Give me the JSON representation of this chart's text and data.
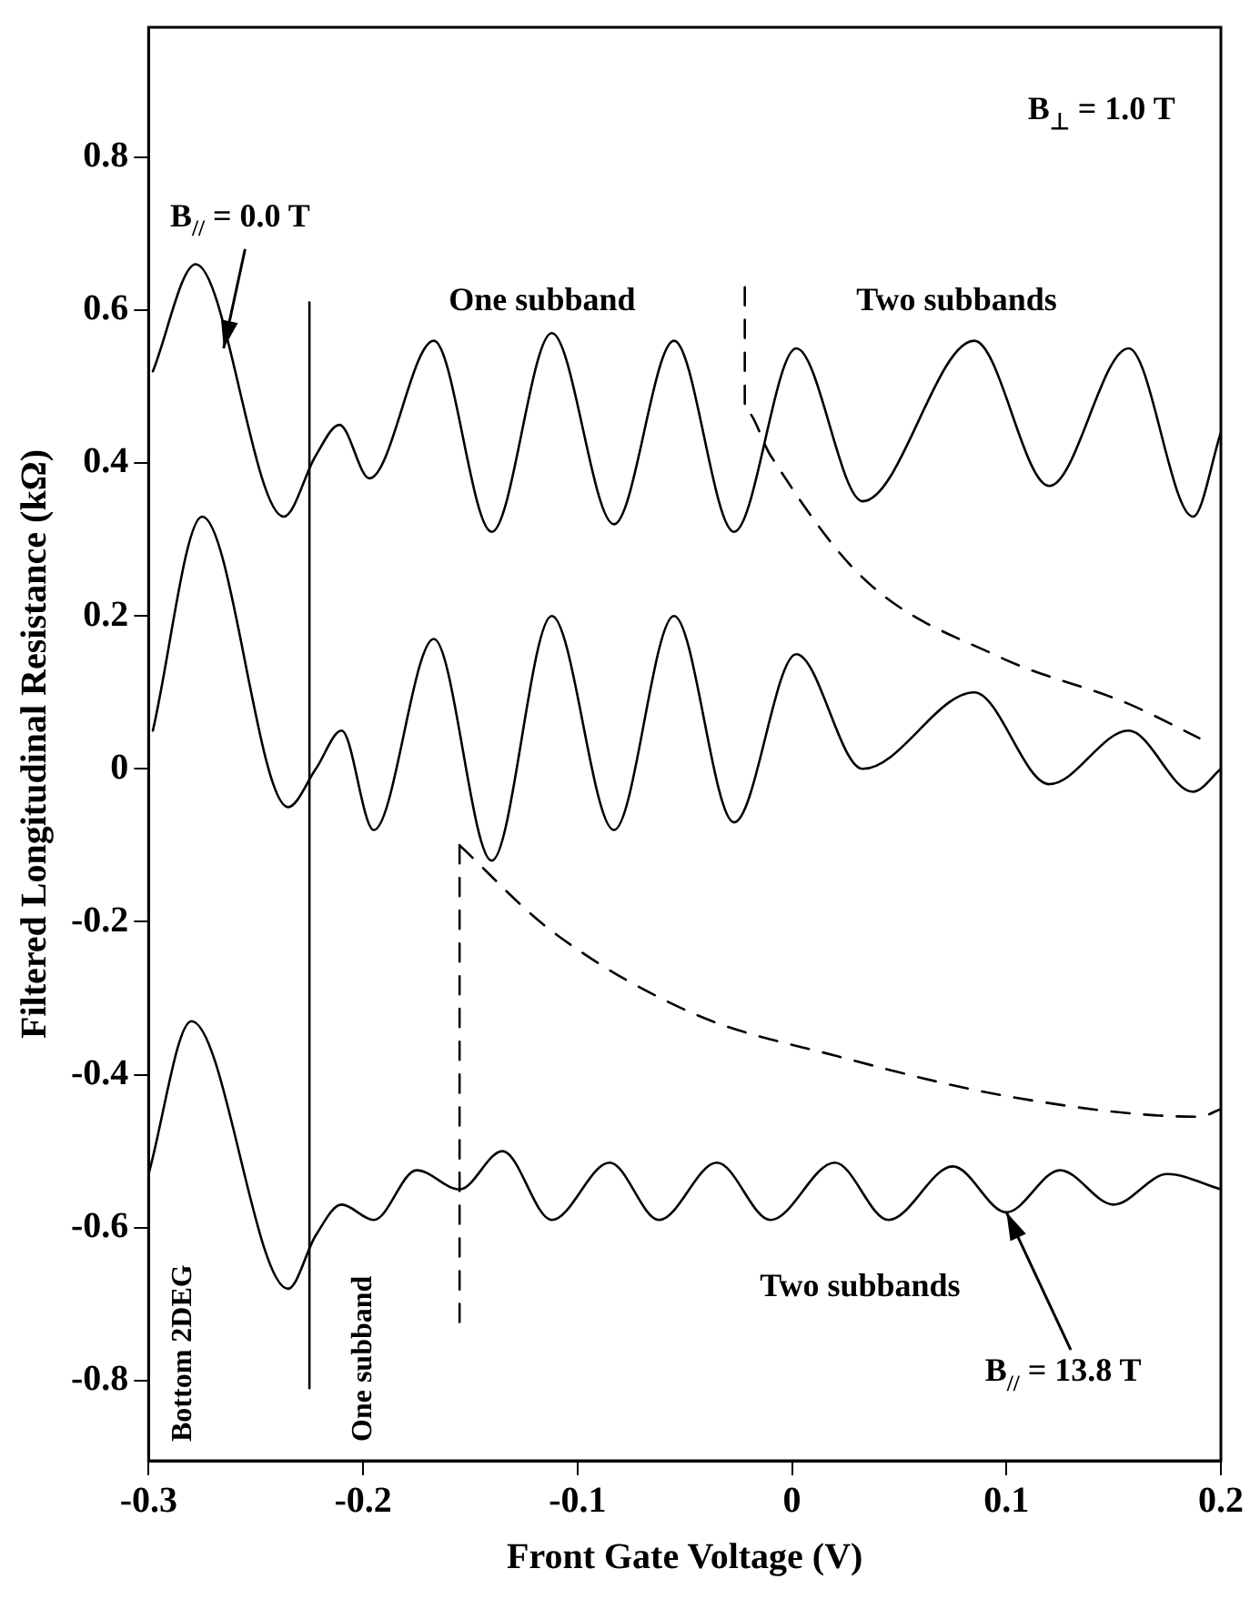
{
  "chart_data": {
    "type": "line",
    "xlabel": "Front Gate Voltage (V)",
    "ylabel": "Filtered Longitudinal Resistance (kΩ)",
    "xlim": [
      -0.3,
      0.2
    ],
    "xticks": [
      -0.3,
      -0.2,
      -0.1,
      0,
      0.1,
      0.2
    ],
    "ylim": [
      -0.905,
      0.97
    ],
    "yticks": [
      -0.8,
      -0.6,
      -0.4,
      -0.2,
      0,
      0.2,
      0.4,
      0.6,
      0.8
    ],
    "legend": false,
    "grid": false,
    "marker": "none",
    "series": [
      {
        "color": "#000000",
        "line_style": "solid",
        "x": [
          -0.298,
          -0.278,
          -0.237,
          -0.222,
          -0.211,
          -0.197,
          -0.167,
          -0.14,
          -0.112,
          -0.083,
          -0.055,
          -0.027,
          0.002,
          0.033,
          0.085,
          0.12,
          0.157,
          0.187,
          0.2
        ],
        "values": [
          0.52,
          0.66,
          0.33,
          0.41,
          0.45,
          0.38,
          0.56,
          0.31,
          0.57,
          0.32,
          0.56,
          0.31,
          0.55,
          0.35,
          0.56,
          0.37,
          0.55,
          0.33,
          0.44
        ]
      },
      {
        "color": "#000000",
        "line_style": "solid",
        "x": [
          -0.298,
          -0.275,
          -0.235,
          -0.222,
          -0.21,
          -0.195,
          -0.167,
          -0.14,
          -0.112,
          -0.083,
          -0.055,
          -0.027,
          0.002,
          0.033,
          0.085,
          0.12,
          0.157,
          0.187,
          0.2
        ],
        "values": [
          0.05,
          0.33,
          -0.05,
          0.0,
          0.05,
          -0.08,
          0.17,
          -0.12,
          0.2,
          -0.08,
          0.2,
          -0.07,
          0.15,
          0.0,
          0.1,
          -0.02,
          0.05,
          -0.03,
          0.0
        ]
      },
      {
        "color": "#000000",
        "line_style": "solid",
        "x": [
          -0.3,
          -0.28,
          -0.235,
          -0.222,
          -0.21,
          -0.195,
          -0.175,
          -0.155,
          -0.135,
          -0.112,
          -0.085,
          -0.062,
          -0.035,
          -0.01,
          0.02,
          0.045,
          0.075,
          0.1,
          0.125,
          0.15,
          0.175,
          0.2
        ],
        "values": [
          -0.53,
          -0.33,
          -0.68,
          -0.61,
          -0.57,
          -0.59,
          -0.525,
          -0.55,
          -0.5,
          -0.59,
          -0.515,
          -0.59,
          -0.515,
          -0.59,
          -0.515,
          -0.59,
          -0.52,
          -0.58,
          -0.525,
          -0.57,
          -0.53,
          -0.55
        ]
      },
      {
        "color": "#000000",
        "line_style": "solid",
        "x": [
          -0.225,
          -0.225
        ],
        "values": [
          0.61,
          -0.81
        ]
      },
      {
        "color": "#000000",
        "line_style": "dashed",
        "x": [
          -0.155,
          -0.155
        ],
        "values": [
          -0.1,
          -0.73
        ]
      },
      {
        "color": "#000000",
        "line_style": "dashed",
        "x": [
          -0.022,
          -0.022,
          -0.01,
          0.033,
          0.097,
          0.157,
          0.19
        ],
        "values": [
          0.63,
          0.47,
          0.41,
          0.25,
          0.146,
          0.085,
          0.04
        ]
      },
      {
        "color": "#000000",
        "line_style": "dashed",
        "x": [
          -0.155,
          -0.113,
          -0.046,
          0.02,
          0.104,
          0.19,
          0.2
        ],
        "values": [
          -0.1,
          -0.21,
          -0.32,
          -0.375,
          -0.43,
          -0.455,
          -0.445
        ]
      }
    ],
    "annotations": [
      "B$_{⊥}$ = 1.0 T",
      {
        "text": "B$_{//}$ = 0.0 T",
        "x": -0.265,
        "y": 0.55
      },
      "One subband",
      "Two subbands",
      "Two subbands",
      {
        "text": "B$_{//}$ = 13.8 T",
        "x": 0.1,
        "y": -0.58
      },
      "Bottom 2DEG",
      "One subband"
    ]
  }
}
